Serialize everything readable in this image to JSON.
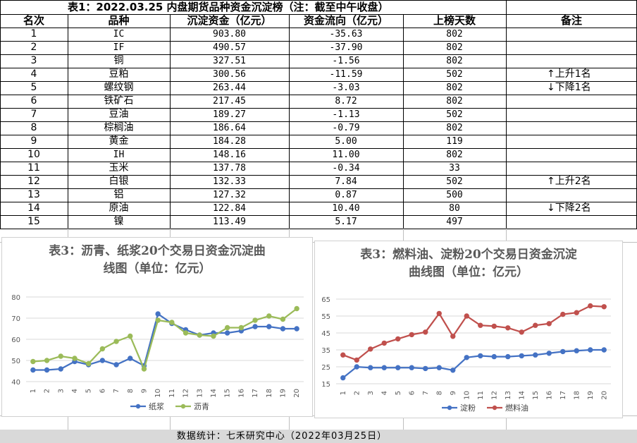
{
  "table": {
    "title": "表1：2022.03.25 内盘期货品种资金沉淀榜（注：截至中午收盘）",
    "headers": [
      "名次",
      "品种",
      "沉淀资金（亿元）",
      "资金流向（亿元）",
      "上榜天数",
      "备注"
    ],
    "rows": [
      {
        "rank": "1",
        "name": "IC",
        "amount": "903.80",
        "flow": "-35.63",
        "days": "802",
        "note": ""
      },
      {
        "rank": "2",
        "name": "IF",
        "amount": "490.57",
        "flow": "-37.90",
        "days": "802",
        "note": ""
      },
      {
        "rank": "3",
        "name": "铜",
        "amount": "327.51",
        "flow": "-1.56",
        "days": "802",
        "note": ""
      },
      {
        "rank": "4",
        "name": "豆粕",
        "amount": "300.56",
        "flow": "-11.59",
        "days": "502",
        "note": "↑上升1名"
      },
      {
        "rank": "5",
        "name": "螺纹钢",
        "amount": "263.44",
        "flow": "-3.03",
        "days": "802",
        "note": "↓下降1名"
      },
      {
        "rank": "6",
        "name": "铁矿石",
        "amount": "217.45",
        "flow": "8.72",
        "days": "802",
        "note": ""
      },
      {
        "rank": "7",
        "name": "豆油",
        "amount": "189.27",
        "flow": "-1.13",
        "days": "502",
        "note": ""
      },
      {
        "rank": "8",
        "name": "棕榈油",
        "amount": "186.64",
        "flow": "-0.79",
        "days": "802",
        "note": ""
      },
      {
        "rank": "9",
        "name": "黄金",
        "amount": "184.28",
        "flow": "5.00",
        "days": "119",
        "note": ""
      },
      {
        "rank": "10",
        "name": "IH",
        "amount": "148.16",
        "flow": "11.00",
        "days": "802",
        "note": ""
      },
      {
        "rank": "11",
        "name": "玉米",
        "amount": "137.78",
        "flow": "-0.34",
        "days": "33",
        "note": ""
      },
      {
        "rank": "12",
        "name": "白银",
        "amount": "132.33",
        "flow": "7.84",
        "days": "502",
        "note": "↑上升2名"
      },
      {
        "rank": "13",
        "name": "铝",
        "amount": "127.32",
        "flow": "0.87",
        "days": "500",
        "note": ""
      },
      {
        "rank": "14",
        "name": "原油",
        "amount": "122.84",
        "flow": "10.40",
        "days": "80",
        "note": "↓下降2名"
      },
      {
        "rank": "15",
        "name": "镍",
        "amount": "113.49",
        "flow": "5.17",
        "days": "497",
        "note": ""
      }
    ]
  },
  "chart_data": [
    {
      "type": "line",
      "title_line1": "表3：沥青、纸浆20个交易日资金沉淀曲",
      "title_line2": "线图（单位：亿元）",
      "x": [
        1,
        2,
        3,
        4,
        5,
        6,
        7,
        8,
        9,
        10,
        11,
        12,
        13,
        14,
        15,
        16,
        17,
        18,
        19,
        20
      ],
      "ylim": [
        40,
        80
      ],
      "yticks": [
        40,
        50,
        60,
        70,
        80
      ],
      "grid": true,
      "legend": "bottom",
      "series": [
        {
          "name": "纸浆",
          "color": "#4472c4",
          "values": [
            45.5,
            45.5,
            46,
            49.5,
            48,
            50,
            48,
            51,
            47.5,
            72,
            67.5,
            64.5,
            62,
            63,
            63,
            64,
            66,
            66,
            65,
            65
          ]
        },
        {
          "name": "沥青",
          "color": "#9bbb59",
          "values": [
            49.5,
            50,
            52,
            51,
            48.5,
            55.5,
            59,
            61.5,
            46,
            69,
            68,
            63,
            62,
            61.5,
            65.5,
            65.5,
            69,
            71,
            69.5,
            74.5
          ]
        }
      ]
    },
    {
      "type": "line",
      "title_line1": "表3：燃料油、淀粉20个交易日资金沉淀",
      "title_line2": "曲线图（单位：亿元）",
      "x": [
        1,
        2,
        3,
        4,
        5,
        6,
        7,
        8,
        9,
        10,
        11,
        12,
        13,
        14,
        15,
        16,
        17,
        18,
        19,
        20
      ],
      "ylim": [
        15,
        65
      ],
      "yticks": [
        15,
        25,
        35,
        45,
        55,
        65
      ],
      "grid": true,
      "legend": "bottom",
      "series": [
        {
          "name": "淀粉",
          "color": "#4472c4",
          "values": [
            18.5,
            25,
            24.5,
            24.5,
            24.5,
            24.5,
            24,
            24.5,
            23,
            30.5,
            31.5,
            31,
            31,
            31.5,
            32,
            33,
            34,
            34.5,
            35,
            35
          ]
        },
        {
          "name": "燃料油",
          "color": "#c0504d",
          "values": [
            32,
            29,
            35.5,
            39,
            41.5,
            44,
            45.5,
            56.5,
            43,
            55,
            49.5,
            49,
            48,
            45.5,
            49.5,
            50.5,
            56,
            57,
            61,
            60.5
          ]
        }
      ]
    }
  ],
  "footer": {
    "text": "数据统计：七禾研究中心（2022年03月25日）"
  }
}
